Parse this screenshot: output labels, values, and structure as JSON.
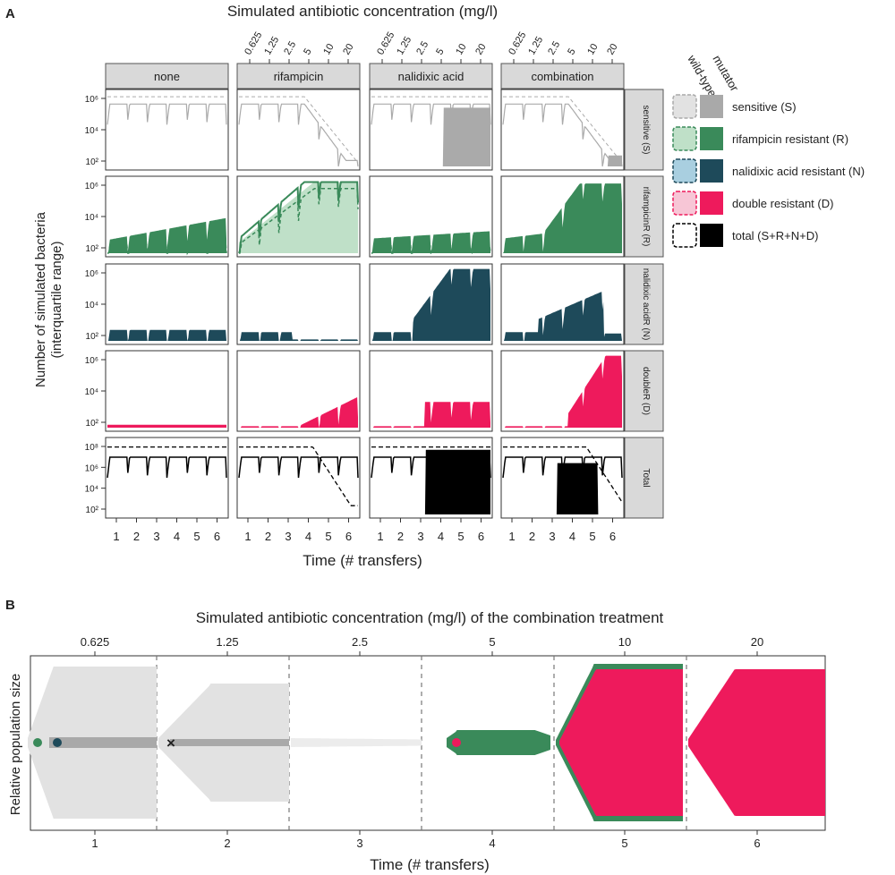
{
  "panel_a": {
    "label": "A",
    "top_title": "Simulated antibiotic concentration (mg/l)",
    "concentration_ticks": [
      "0.625",
      "1.25",
      "2.5",
      "5",
      "10",
      "20"
    ],
    "treatments": [
      "none",
      "rifampicin",
      "nalidixic acid",
      "combination"
    ],
    "row_strips": [
      "sensitive (S)",
      "rifampicinR (R)",
      "nalidixic acidR (N)",
      "doubleR (D)",
      "Total"
    ],
    "y_ticks": [
      "10⁶",
      "10⁴",
      "10²"
    ],
    "total_row_y_ticks": [
      "10⁸",
      "10⁶",
      "10⁴",
      "10²"
    ],
    "x_ticks": [
      "1",
      "2",
      "3",
      "4",
      "5",
      "6"
    ],
    "ylabel_line1": "Number of simulated bacteria",
    "ylabel_line2": "(interquartile range)",
    "xlabel": "Time (# transfers)"
  },
  "legend": {
    "header_wildtype": "wild-type",
    "header_mutator": "mutator",
    "items": [
      {
        "label": "sensitive (S)",
        "wild_color": "#e2e2e2",
        "mut_color": "#a9a9a9"
      },
      {
        "label": "rifampicin resistant (R)",
        "wild_color": "#bfe0c8",
        "mut_color": "#3a8a5a"
      },
      {
        "label": "nalidixic acid resistant (N)",
        "wild_color": "#a9cfe0",
        "mut_color": "#1e4a5a"
      },
      {
        "label": "double resistant (D)",
        "wild_color": "#f7c6d6",
        "mut_color": "#ee1a5c"
      },
      {
        "label": "total (S+R+N+D)",
        "wild_color": "#ffffff",
        "mut_color": "#000000"
      }
    ]
  },
  "panel_b": {
    "label": "B",
    "title": "Simulated antibiotic concentration (mg/l) of the combination treatment",
    "concentration_ticks": [
      "0.625",
      "1.25",
      "2.5",
      "5",
      "10",
      "20"
    ],
    "ylabel": "Relative population size",
    "xlabel": "Time (# transfers)",
    "x_ticks": [
      "1",
      "2",
      "3",
      "4",
      "5",
      "6"
    ]
  },
  "colors": {
    "sensitive": "#a9a9a9",
    "sensitive_light": "#e2e2e2",
    "rifampicin": "#3a8a5a",
    "rifampicin_light": "#bfe0c8",
    "nalidixic": "#1e4a5a",
    "double": "#ee1a5c",
    "total": "#000000",
    "strip": "#d9d9d9"
  },
  "chart_data": [
    {
      "type": "area",
      "title": "Simulated antibiotic concentration (mg/l)",
      "xlabel": "Time (# transfers)",
      "ylabel": "Number of simulated bacteria (interquartile range)",
      "y_scale": "log10",
      "x": [
        1,
        2,
        3,
        4,
        5,
        6
      ],
      "facets_columns": [
        "none",
        "rifampicin",
        "nalidixic acid",
        "combination"
      ],
      "facets_rows": [
        "sensitive (S)",
        "rifampicin resistant (R)",
        "nalidixic acid resistant (N)",
        "double resistant (D)",
        "total (S+R+N+D)"
      ],
      "approx_peak_log10": {
        "sensitive": {
          "none": 8.3,
          "rifampicin": 8.3,
          "nalidixic acid": 8.3,
          "combination": 8.3
        },
        "rifampicin resistant": {
          "none": 3.5,
          "rifampicin": 8.3,
          "nalidixic acid": 2.2,
          "combination": 8.3
        },
        "nalidixic acid resistant": {
          "none": 1.8,
          "rifampicin": 1.5,
          "nalidixic acid": 8.3,
          "combination": 4.5
        },
        "double resistant": {
          "none": 0,
          "rifampicin": 3.2,
          "nalidixic acid": 3.0,
          "combination": 8.3
        },
        "total": {
          "none": 8.9,
          "rifampicin": 8.9,
          "nalidixic acid": 8.9,
          "combination": 8.9
        }
      }
    },
    {
      "type": "area",
      "title": "Simulated antibiotic concentration (mg/l) of the combination treatment",
      "xlabel": "Time (# transfers)",
      "ylabel": "Relative population size",
      "x": [
        1,
        2,
        3,
        4,
        5,
        6
      ],
      "concentration": [
        0.625,
        1.25,
        2.5,
        5,
        10,
        20
      ],
      "dominant_population": [
        "sensitive",
        "sensitive",
        "sensitive",
        "rifampicin resistant",
        "double resistant",
        "double resistant"
      ],
      "relative_max_width": [
        1.0,
        0.7,
        0.08,
        0.2,
        0.98,
        0.92
      ]
    }
  ]
}
